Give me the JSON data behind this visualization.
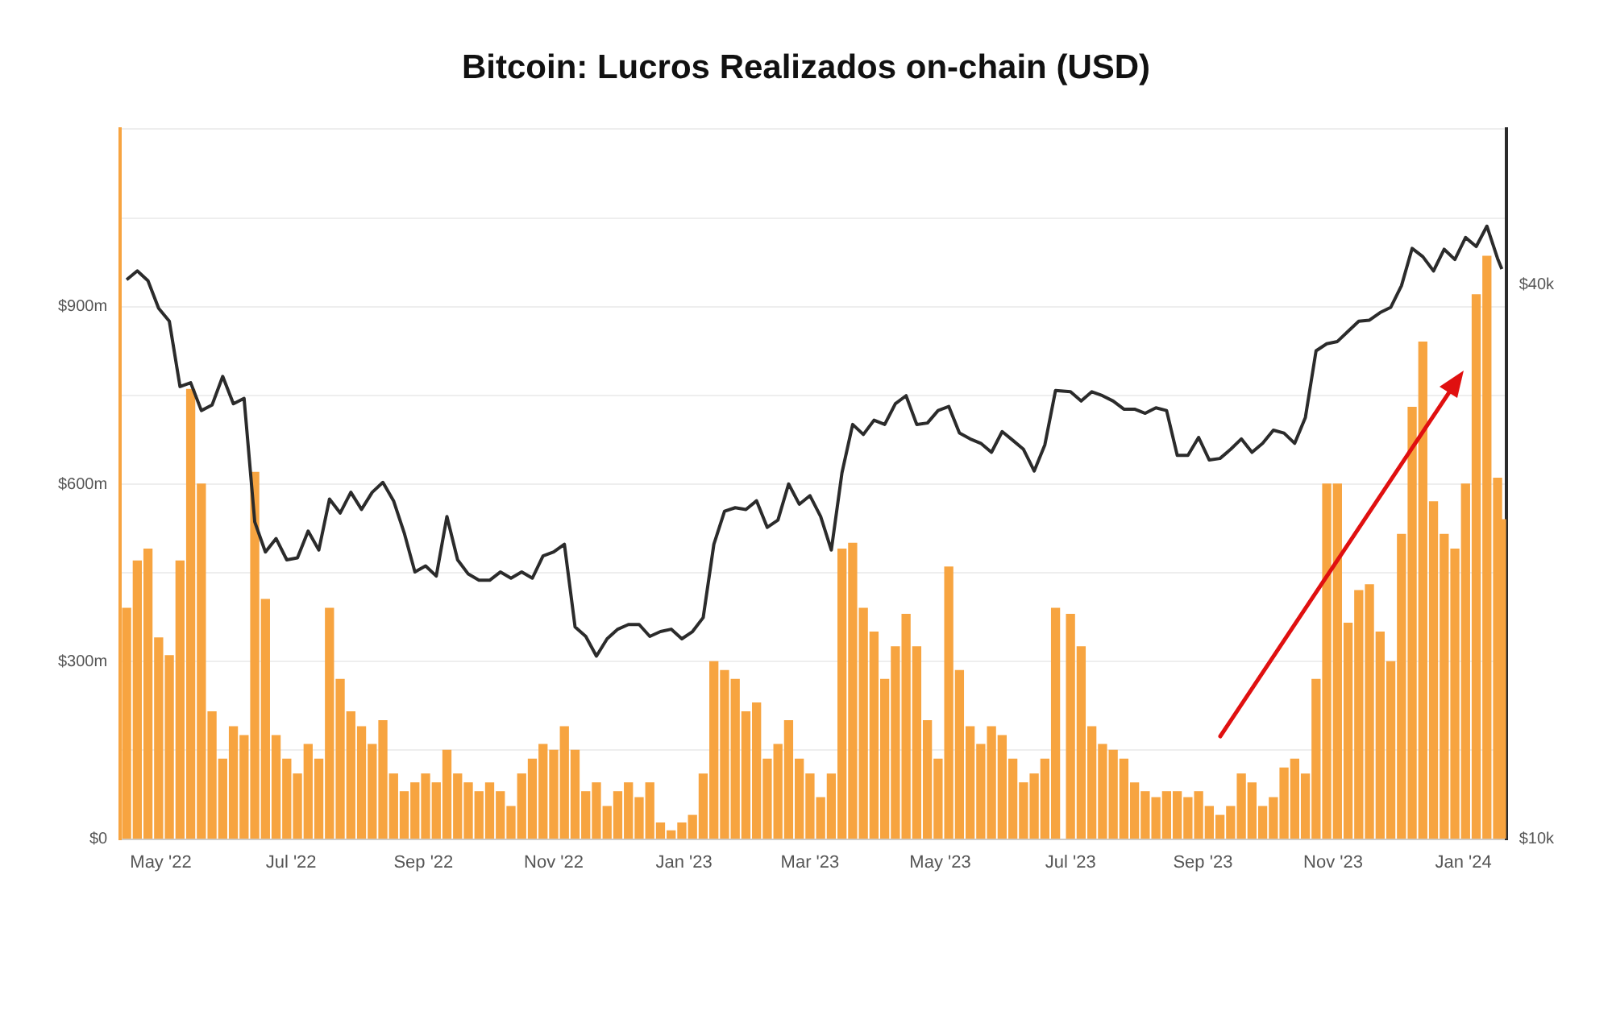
{
  "chart_data": {
    "type": "bar",
    "title": "Bitcoin: Lucros Realizados on-chain (USD)",
    "x": [
      "2022-04-15",
      "2022-04-20",
      "2022-04-25",
      "2022-04-30",
      "2022-05-05",
      "2022-05-10",
      "2022-05-15",
      "2022-05-20",
      "2022-05-25",
      "2022-05-30",
      "2022-06-04",
      "2022-06-09",
      "2022-06-14",
      "2022-06-19",
      "2022-06-24",
      "2022-06-29",
      "2022-07-04",
      "2022-07-09",
      "2022-07-14",
      "2022-07-19",
      "2022-07-24",
      "2022-07-29",
      "2022-08-03",
      "2022-08-08",
      "2022-08-13",
      "2022-08-18",
      "2022-08-23",
      "2022-08-28",
      "2022-09-02",
      "2022-09-07",
      "2022-09-12",
      "2022-09-17",
      "2022-09-22",
      "2022-09-27",
      "2022-10-02",
      "2022-10-07",
      "2022-10-12",
      "2022-10-17",
      "2022-10-22",
      "2022-10-27",
      "2022-11-01",
      "2022-11-06",
      "2022-11-11",
      "2022-11-16",
      "2022-11-21",
      "2022-11-26",
      "2022-12-01",
      "2022-12-06",
      "2022-12-11",
      "2022-12-16",
      "2022-12-21",
      "2022-12-26",
      "2022-12-31",
      "2023-01-05",
      "2023-01-10",
      "2023-01-15",
      "2023-01-20",
      "2023-01-25",
      "2023-01-30",
      "2023-02-04",
      "2023-02-09",
      "2023-02-14",
      "2023-02-19",
      "2023-02-24",
      "2023-03-01",
      "2023-03-06",
      "2023-03-11",
      "2023-03-16",
      "2023-03-21",
      "2023-03-26",
      "2023-03-31",
      "2023-04-05",
      "2023-04-10",
      "2023-04-15",
      "2023-04-20",
      "2023-04-25",
      "2023-04-30",
      "2023-05-05",
      "2023-05-10",
      "2023-05-15",
      "2023-05-20",
      "2023-05-25",
      "2023-05-30",
      "2023-06-04",
      "2023-06-09",
      "2023-06-14",
      "2023-06-19",
      "2023-06-24",
      "2023-07-01",
      "2023-07-06",
      "2023-07-11",
      "2023-07-16",
      "2023-07-21",
      "2023-07-26",
      "2023-07-31",
      "2023-08-05",
      "2023-08-10",
      "2023-08-15",
      "2023-08-20",
      "2023-08-25",
      "2023-08-30",
      "2023-09-04",
      "2023-09-09",
      "2023-09-14",
      "2023-09-19",
      "2023-09-24",
      "2023-09-29",
      "2023-10-04",
      "2023-10-09",
      "2023-10-14",
      "2023-10-19",
      "2023-10-24",
      "2023-10-29",
      "2023-11-03",
      "2023-11-08",
      "2023-11-13",
      "2023-11-18",
      "2023-11-23",
      "2023-11-28",
      "2023-12-03",
      "2023-12-08",
      "2023-12-13",
      "2023-12-18",
      "2023-12-23",
      "2023-12-28",
      "2024-01-02",
      "2024-01-07",
      "2024-01-12",
      "2024-01-17",
      "2024-01-19"
    ],
    "series": [
      {
        "color": "#f7a440",
        "values": [
          390,
          470,
          490,
          340,
          310,
          470,
          760,
          600,
          215,
          135,
          190,
          175,
          620,
          405,
          175,
          135,
          110,
          160,
          135,
          390,
          270,
          215,
          190,
          160,
          200,
          110,
          80,
          95,
          110,
          95,
          150,
          110,
          95,
          80,
          95,
          80,
          55,
          110,
          135,
          160,
          150,
          190,
          150,
          80,
          95,
          55,
          80,
          95,
          70,
          95,
          27,
          14,
          27,
          40,
          110,
          300,
          285,
          270,
          215,
          230,
          135,
          160,
          200,
          135,
          110,
          70,
          110,
          490,
          500,
          390,
          350,
          270,
          325,
          380,
          325,
          200,
          135,
          460,
          285,
          190,
          160,
          190,
          175,
          135,
          95,
          110,
          135,
          390,
          380,
          325,
          190,
          160,
          150,
          135,
          95,
          80,
          70,
          80,
          80,
          70,
          80,
          55,
          40,
          55,
          110,
          95,
          55,
          70,
          120,
          135,
          110,
          270,
          600,
          600,
          365,
          420,
          430,
          350,
          300,
          515,
          730,
          840,
          570,
          515,
          490,
          600,
          920,
          985,
          610,
          540
        ]
      },
      {
        "type": "line",
        "axis": "y2",
        "color": "#2b2b2b",
        "values": [
          40500,
          41400,
          40400,
          37700,
          36500,
          31000,
          31300,
          29200,
          29600,
          31800,
          29700,
          30100,
          22100,
          20500,
          21200,
          20100,
          20200,
          21600,
          20600,
          23400,
          22600,
          23800,
          22800,
          23800,
          24400,
          23300,
          21500,
          19500,
          19800,
          19300,
          22400,
          20100,
          19400,
          19100,
          19100,
          19500,
          19200,
          19500,
          19200,
          20300,
          20500,
          20900,
          17000,
          16600,
          15800,
          16500,
          16900,
          17100,
          17100,
          16600,
          16800,
          16900,
          16500,
          16800,
          17400,
          20900,
          22700,
          22900,
          22800,
          23300,
          21800,
          22200,
          24300,
          23100,
          23600,
          22400,
          20600,
          25000,
          28200,
          27500,
          28500,
          28200,
          29700,
          30300,
          28200,
          28300,
          29200,
          29500,
          27600,
          27200,
          26900,
          26300,
          27700,
          27100,
          26500,
          25100,
          26800,
          30700,
          30600,
          29900,
          30600,
          30300,
          29900,
          29300,
          29300,
          29000,
          29400,
          29200,
          26100,
          26100,
          27300,
          25800,
          25900,
          26500,
          27200,
          26300,
          26900,
          27800,
          27600,
          26900,
          28700,
          33900,
          34500,
          34700,
          35600,
          36500,
          36600,
          37300,
          37800,
          39900,
          43800,
          42900,
          41400,
          43700,
          42600,
          45000,
          44000,
          46300,
          42700,
          41600
        ]
      }
    ],
    "xlim": [
      "2022-04-12",
      "2024-01-21"
    ],
    "xticks": [
      {
        "value": "2022-05-01",
        "label": "May '22"
      },
      {
        "value": "2022-07-01",
        "label": "Jul '22"
      },
      {
        "value": "2022-09-01",
        "label": "Sep '22"
      },
      {
        "value": "2022-11-01",
        "label": "Nov '22"
      },
      {
        "value": "2023-01-01",
        "label": "Jan '23"
      },
      {
        "value": "2023-03-01",
        "label": "Mar '23"
      },
      {
        "value": "2023-05-01",
        "label": "May '23"
      },
      {
        "value": "2023-07-01",
        "label": "Jul '23"
      },
      {
        "value": "2023-09-01",
        "label": "Sep '23"
      },
      {
        "value": "2023-11-01",
        "label": "Nov '23"
      },
      {
        "value": "2024-01-01",
        "label": "Jan '24"
      }
    ],
    "ylim": [
      0,
      1200
    ],
    "yticks": [
      {
        "value": 0,
        "label": "$0"
      },
      {
        "value": 150,
        "label": null
      },
      {
        "value": 300,
        "label": "$300m"
      },
      {
        "value": 450,
        "label": null
      },
      {
        "value": 600,
        "label": "$600m"
      },
      {
        "value": 750,
        "label": null
      },
      {
        "value": 900,
        "label": "$900m"
      },
      {
        "value": 1050,
        "label": null
      },
      {
        "value": 1200,
        "label": null
      }
    ],
    "y2lim": [
      10000,
      59000
    ],
    "y2ticks": [
      {
        "value": 10000,
        "label": "$10k"
      },
      {
        "value": 40000,
        "label": "$40k"
      }
    ],
    "log": "y2",
    "grid": "y"
  }
}
